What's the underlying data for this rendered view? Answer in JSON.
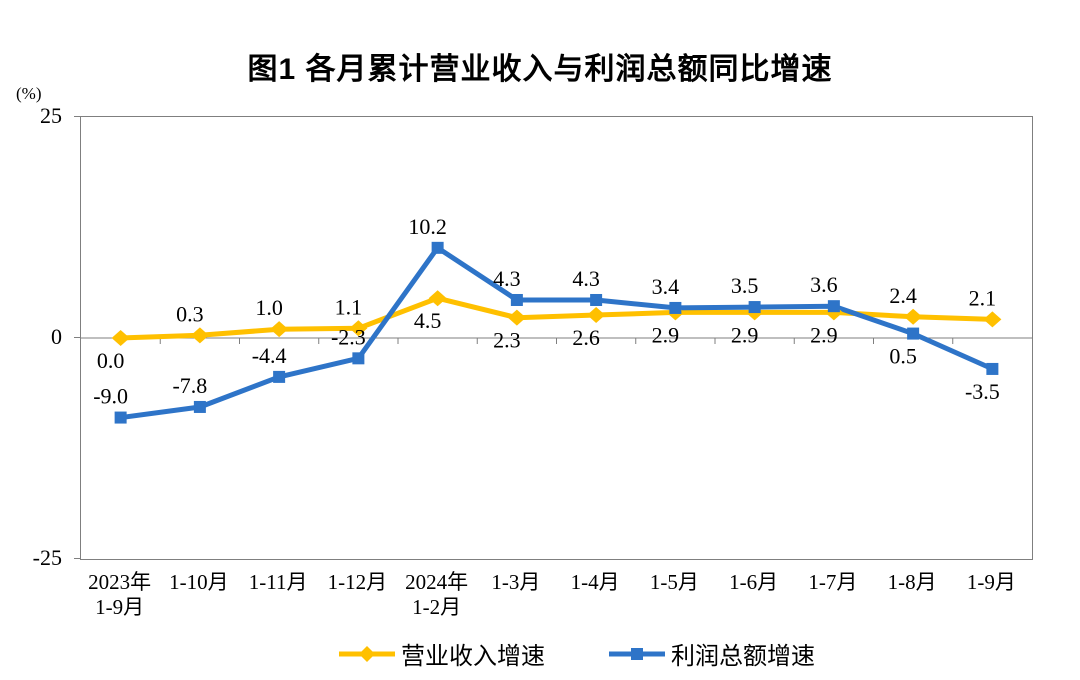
{
  "chart_data": {
    "type": "line",
    "title": "图1  各月累计营业收入与利润总额同比增速",
    "unit": "(%)",
    "categories": [
      [
        "2023年",
        "1-9月"
      ],
      [
        "1-10月"
      ],
      [
        "1-11月"
      ],
      [
        "1-12月"
      ],
      [
        "2024年",
        "1-2月"
      ],
      [
        "1-3月"
      ],
      [
        "1-4月"
      ],
      [
        "1-5月"
      ],
      [
        "1-6月"
      ],
      [
        "1-7月"
      ],
      [
        "1-8月"
      ],
      [
        "1-9月"
      ]
    ],
    "ylim": [
      -25,
      25
    ],
    "yticks": [
      25,
      0,
      -25
    ],
    "grid": false,
    "zero_line": true,
    "legend_position": "bottom",
    "axis_color": "#7f7f7f",
    "series": [
      {
        "name": "营业收入增速",
        "color": "#FFC000",
        "marker": "diamond",
        "values": [
          0.0,
          0.3,
          1.0,
          1.1,
          4.5,
          2.3,
          2.6,
          2.9,
          2.9,
          2.9,
          2.4,
          2.1
        ],
        "label_sides": [
          "below",
          "above",
          "above",
          "above",
          "below",
          "below",
          "below",
          "below",
          "below",
          "below",
          "above",
          "above"
        ]
      },
      {
        "name": "利润总额增速",
        "color": "#2E74C8",
        "marker": "square",
        "values": [
          -9.0,
          -7.8,
          -4.4,
          -2.3,
          10.2,
          4.3,
          4.3,
          3.4,
          3.5,
          3.6,
          0.5,
          -3.5
        ],
        "label_sides": [
          "above",
          "above",
          "above",
          "above",
          "above",
          "above",
          "above",
          "above",
          "above",
          "above",
          "below",
          "below"
        ]
      }
    ]
  }
}
